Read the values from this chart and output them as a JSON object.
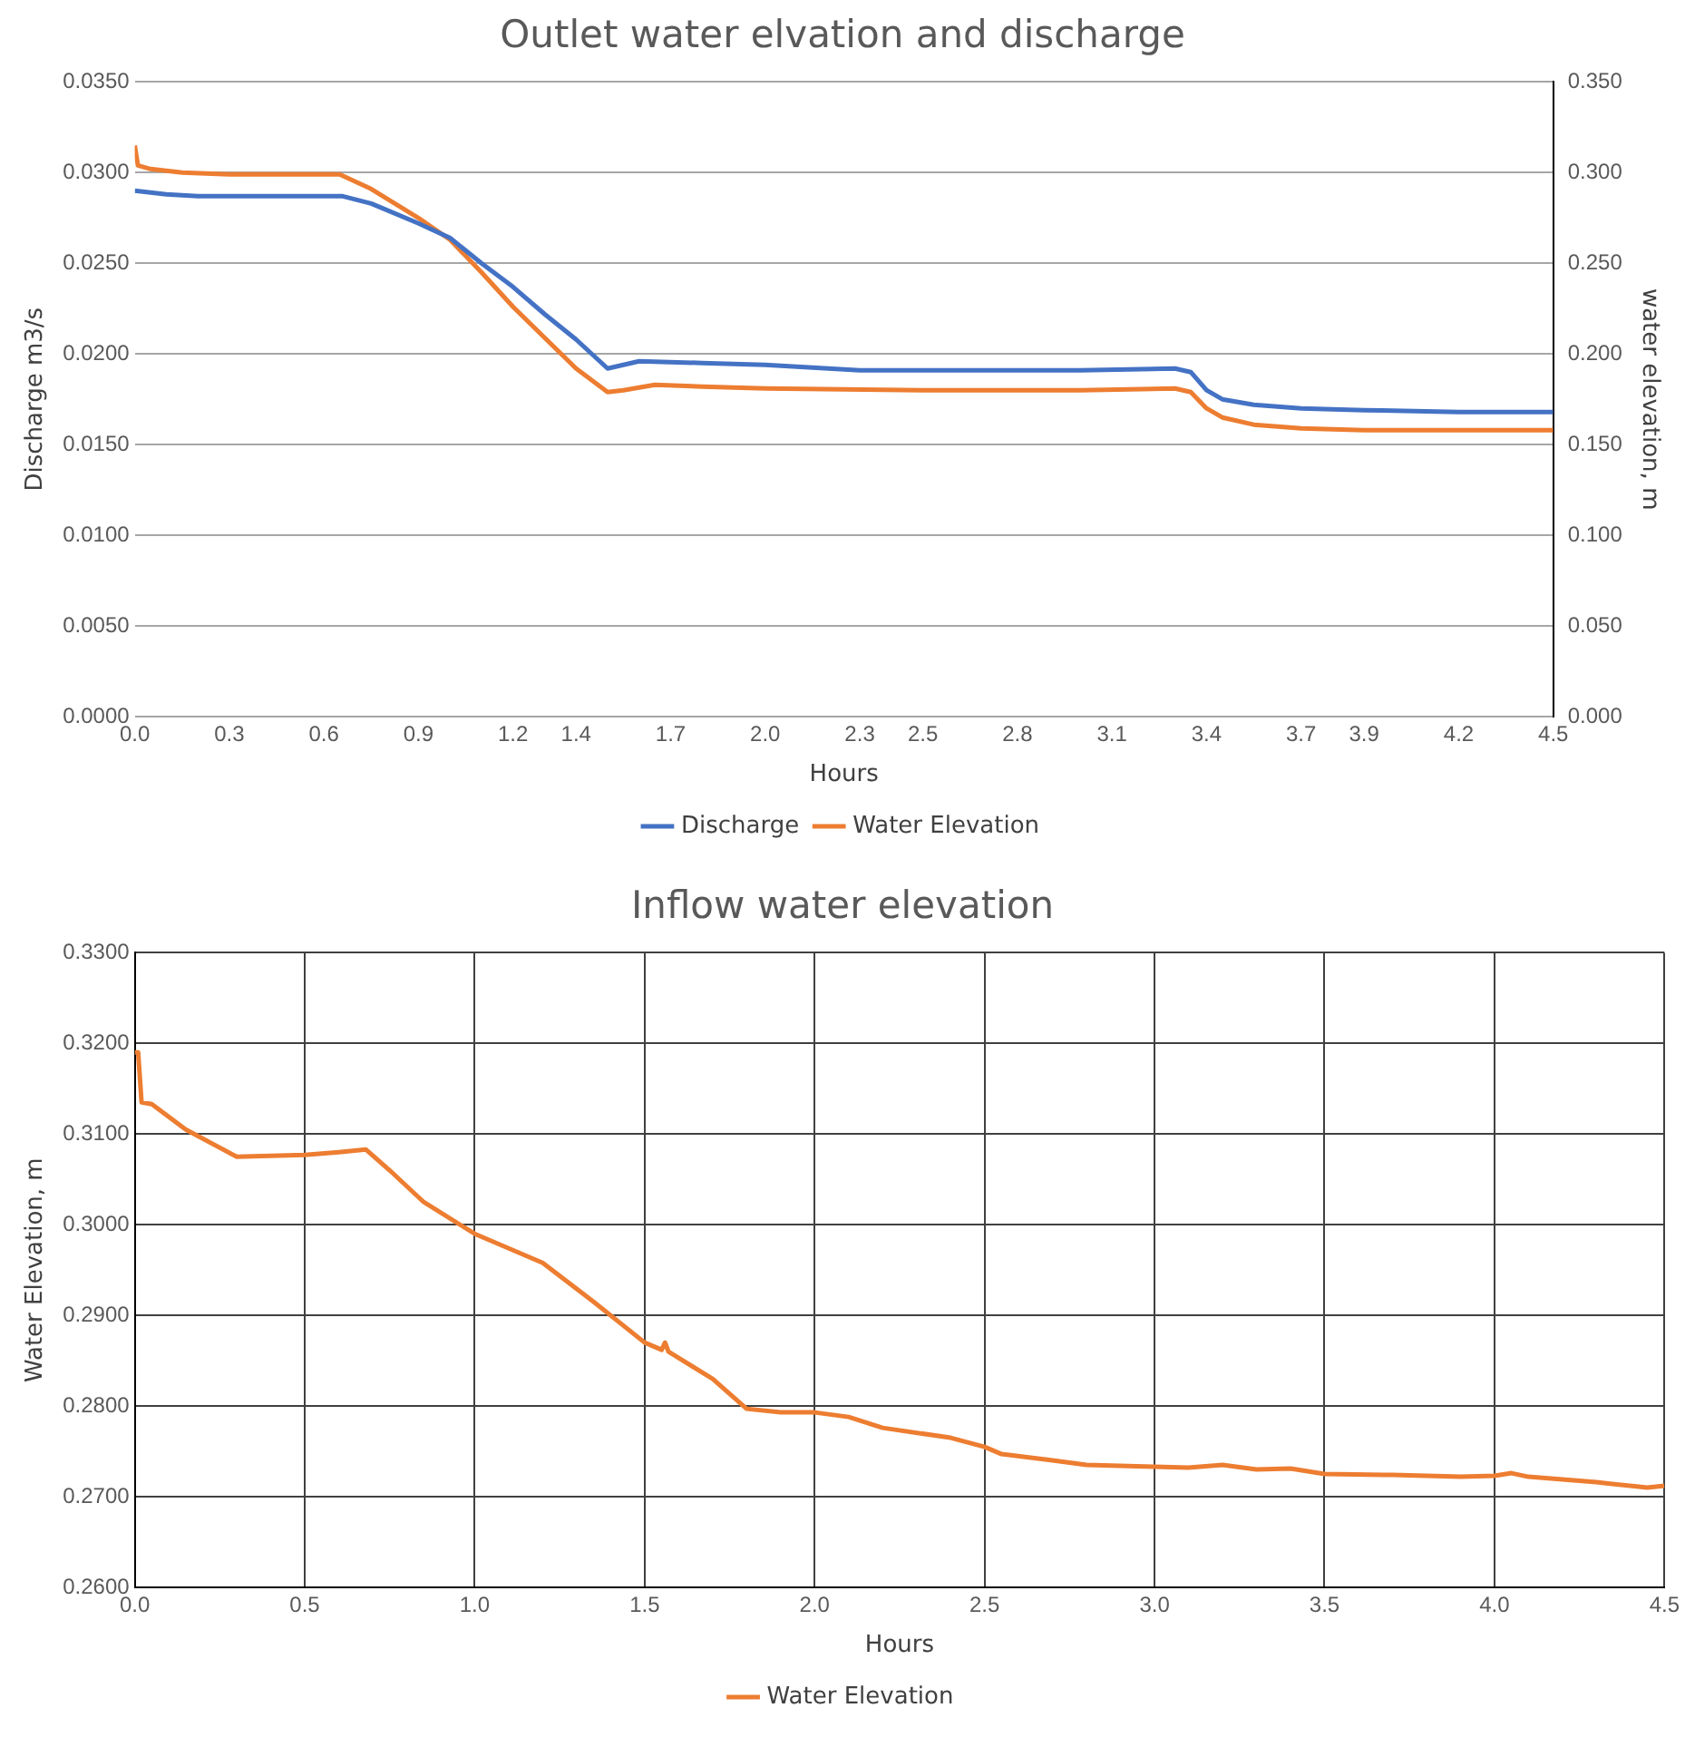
{
  "chart_data": [
    {
      "type": "line",
      "title": "Outlet water elvation and discharge",
      "xlabel": "Hours",
      "ylabel": "Discharge m3/s",
      "y2label": "water elevation, m",
      "legend": "bottom",
      "grid": "y",
      "marker": "none",
      "line_style": "solid",
      "xlim": [
        0,
        4.5
      ],
      "xticks": [
        {
          "value": 0,
          "label": "0.0"
        },
        0.3,
        0.6,
        0.9,
        1.2,
        1.4,
        1.7,
        {
          "value": 2,
          "label": "2.0"
        },
        2.3,
        2.5,
        2.8,
        3.1,
        3.4,
        3.7,
        3.9,
        4.2,
        4.5
      ],
      "ylim": [
        0,
        0.035
      ],
      "yticks": [
        {
          "value": 0,
          "label": "0.0000"
        },
        {
          "value": 0.005,
          "label": "0.0050"
        },
        {
          "value": 0.01,
          "label": "0.0100"
        },
        {
          "value": 0.015,
          "label": "0.0150"
        },
        {
          "value": 0.02,
          "label": "0.0200"
        },
        {
          "value": 0.025,
          "label": "0.0250"
        },
        {
          "value": 0.03,
          "label": "0.0300"
        },
        {
          "value": 0.035,
          "label": "0.0350"
        }
      ],
      "y2lim": [
        0,
        0.35
      ],
      "y2ticks": [
        {
          "value": 0,
          "label": "0.000"
        },
        {
          "value": 0.05,
          "label": "0.050"
        },
        {
          "value": 0.1,
          "label": "0.100"
        },
        {
          "value": 0.15,
          "label": "0.150"
        },
        {
          "value": 0.2,
          "label": "0.200"
        },
        {
          "value": 0.25,
          "label": "0.250"
        },
        {
          "value": 0.3,
          "label": "0.300"
        },
        {
          "value": 0.35,
          "label": "0.350"
        }
      ],
      "series": [
        {
          "name": "Discharge",
          "color": "#4472c4",
          "axis": "y",
          "x": [
            0,
            0.05,
            0.1,
            0.2,
            0.4,
            0.6,
            0.66,
            0.75,
            0.9,
            1.0,
            1.1,
            1.2,
            1.3,
            1.4,
            1.5,
            1.55,
            1.6,
            1.8,
            2.0,
            2.3,
            2.6,
            3.0,
            3.3,
            3.35,
            3.4,
            3.45,
            3.55,
            3.7,
            3.9,
            4.2,
            4.5
          ],
          "values": [
            0.029,
            0.0289,
            0.0288,
            0.0287,
            0.0287,
            0.0287,
            0.0287,
            0.0283,
            0.0272,
            0.0264,
            0.025,
            0.0237,
            0.0222,
            0.0208,
            0.0192,
            0.0194,
            0.0196,
            0.0195,
            0.0194,
            0.0191,
            0.0191,
            0.0191,
            0.0192,
            0.019,
            0.018,
            0.0175,
            0.0172,
            0.017,
            0.0169,
            0.0168,
            0.0168
          ]
        },
        {
          "name": "Water Elevation",
          "color": "#ed7d31",
          "axis": "y2",
          "x": [
            0,
            0.01,
            0.05,
            0.15,
            0.3,
            0.5,
            0.65,
            0.75,
            0.9,
            1.0,
            1.1,
            1.2,
            1.3,
            1.4,
            1.5,
            1.55,
            1.65,
            1.8,
            2.0,
            2.5,
            3.0,
            3.3,
            3.35,
            3.4,
            3.45,
            3.55,
            3.7,
            3.9,
            4.2,
            4.5
          ],
          "values": [
            0.315,
            0.304,
            0.302,
            0.3,
            0.299,
            0.299,
            0.299,
            0.291,
            0.275,
            0.263,
            0.245,
            0.226,
            0.209,
            0.192,
            0.179,
            0.18,
            0.183,
            0.182,
            0.181,
            0.18,
            0.18,
            0.181,
            0.179,
            0.17,
            0.165,
            0.161,
            0.159,
            0.158,
            0.158,
            0.158
          ]
        }
      ]
    },
    {
      "type": "line",
      "title": "Inflow water elevation",
      "xlabel": "Hours",
      "ylabel": "Water Elevation, m",
      "legend": "bottom",
      "grid": true,
      "marker": "none",
      "line_style": "solid",
      "xlim": [
        0,
        4.5
      ],
      "xticks": [
        {
          "value": 0,
          "label": "0.0"
        },
        0.5,
        {
          "value": 1,
          "label": "1.0"
        },
        1.5,
        {
          "value": 2,
          "label": "2.0"
        },
        2.5,
        {
          "value": 3,
          "label": "3.0"
        },
        3.5,
        {
          "value": 4,
          "label": "4.0"
        },
        4.5
      ],
      "ylim": [
        0.26,
        0.33
      ],
      "yticks": [
        {
          "value": 0.26,
          "label": "0.2600"
        },
        {
          "value": 0.27,
          "label": "0.2700"
        },
        {
          "value": 0.28,
          "label": "0.2800"
        },
        {
          "value": 0.29,
          "label": "0.2900"
        },
        {
          "value": 0.3,
          "label": "0.3000"
        },
        {
          "value": 0.31,
          "label": "0.3100"
        },
        {
          "value": 0.32,
          "label": "0.3200"
        },
        {
          "value": 0.33,
          "label": "0.3300"
        }
      ],
      "series": [
        {
          "name": "Water Elevation",
          "color": "#ed7d31",
          "x": [
            0,
            0.01,
            0.02,
            0.05,
            0.15,
            0.3,
            0.4,
            0.5,
            0.6,
            0.68,
            0.75,
            0.85,
            1.0,
            1.2,
            1.35,
            1.5,
            1.55,
            1.56,
            1.57,
            1.7,
            1.8,
            1.9,
            2.0,
            2.1,
            2.2,
            2.4,
            2.5,
            2.55,
            2.7,
            2.8,
            3.0,
            3.1,
            3.2,
            3.3,
            3.4,
            3.5,
            3.7,
            3.9,
            4.0,
            4.05,
            4.1,
            4.3,
            4.45,
            4.5
          ],
          "values": [
            0.319,
            0.319,
            0.3135,
            0.3133,
            0.3105,
            0.3075,
            0.3076,
            0.3077,
            0.308,
            0.3083,
            0.306,
            0.3025,
            0.299,
            0.2958,
            0.2915,
            0.287,
            0.2862,
            0.287,
            0.286,
            0.283,
            0.2797,
            0.2793,
            0.2793,
            0.2788,
            0.2776,
            0.2765,
            0.2755,
            0.2747,
            0.274,
            0.2735,
            0.2733,
            0.2732,
            0.2735,
            0.273,
            0.2731,
            0.2725,
            0.2724,
            0.2722,
            0.2723,
            0.2726,
            0.2722,
            0.2716,
            0.271,
            0.2712
          ]
        }
      ]
    }
  ]
}
